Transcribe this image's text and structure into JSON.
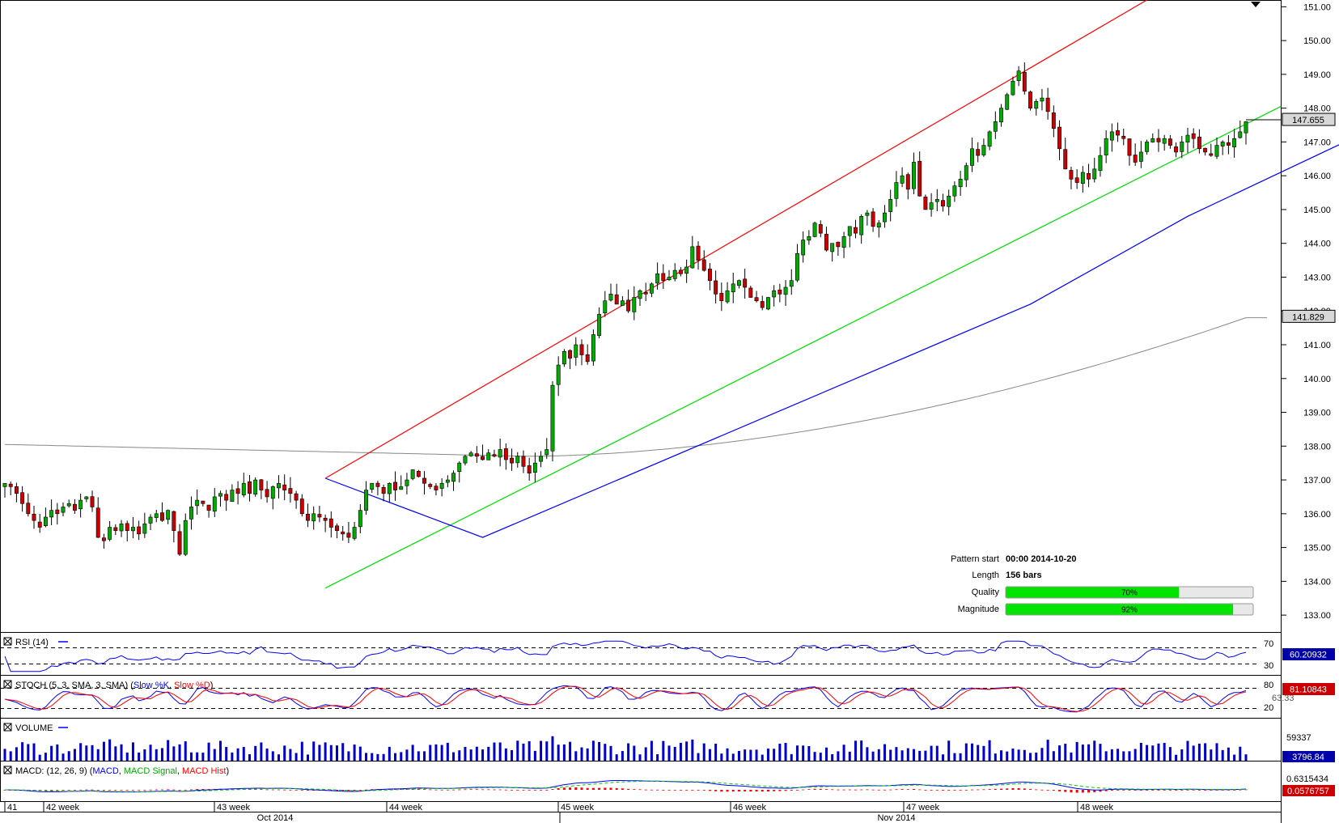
{
  "chart_data": {
    "type": "candlestick",
    "price_axis": {
      "ylim": [
        132.5,
        151.2
      ],
      "ticks": [
        "151.00",
        "150.00",
        "149.00",
        "148.00",
        "147.00",
        "146.00",
        "145.00",
        "144.00",
        "143.00",
        "142.00",
        "141.00",
        "140.00",
        "139.00",
        "138.00",
        "137.00",
        "136.00",
        "135.00",
        "134.00",
        "133.00"
      ],
      "last_price": "147.655",
      "ma_value": "141.829"
    },
    "week_labels": [
      "41",
      "42 week",
      "43 week",
      "44 week",
      "45 week",
      "46 week",
      "47 week",
      "48 week"
    ],
    "month_labels": [
      "Oct 2014",
      "Nov 2014"
    ],
    "pattern": {
      "start_label": "Pattern start",
      "start_value": "00:00 2014-10-20",
      "length_label": "Length",
      "length_value": "156 bars",
      "quality_label": "Quality",
      "quality_pct": 70,
      "quality_text": "70%",
      "magnitude_label": "Magnitude",
      "magnitude_pct": 92,
      "magnitude_text": "92%"
    },
    "indicators": {
      "rsi": {
        "title": "RSI (14)",
        "value": "60.20932",
        "levels": [
          "70",
          "30"
        ]
      },
      "stoch": {
        "title": "STOCH (5, 3, SMA, 3, SMA)",
        "k_label": "Slow %K",
        "d_label": "Slow %D",
        "value": "81.10843",
        "value2": "63.33",
        "levels": [
          "80",
          "20"
        ]
      },
      "volume": {
        "title": "VOLUME",
        "max_label": "59337",
        "value": "3796.84"
      },
      "macd": {
        "title": "MACD: (12, 26, 9)",
        "macd_label": "MACD",
        "signal_label": "MACD Signal",
        "hist_label": "MACD Hist",
        "value": "0.6315434",
        "hist_value": "0.0576757"
      }
    },
    "colors": {
      "up": "#00aa00",
      "down": "#cc0000",
      "resistance": "#ff0000",
      "support": "#00dd00",
      "zigzag": "#0000ff",
      "ma": "#888888",
      "quality_bar": "#00e400",
      "volume": "#0000cc"
    },
    "closes": [
      136.9,
      136.8,
      136.6,
      136.3,
      136.0,
      135.8,
      135.6,
      135.9,
      136.1,
      136.0,
      136.2,
      136.3,
      136.1,
      136.4,
      136.5,
      136.2,
      135.3,
      135.2,
      135.6,
      135.5,
      135.7,
      135.5,
      135.6,
      135.4,
      135.7,
      135.9,
      136.0,
      135.8,
      136.1,
      135.5,
      134.8,
      135.8,
      136.2,
      136.4,
      136.3,
      136.1,
      136.5,
      136.6,
      136.4,
      136.7,
      136.6,
      136.9,
      136.6,
      137.0,
      136.7,
      136.5,
      136.8,
      136.9,
      136.7,
      136.6,
      136.4,
      136.0,
      135.8,
      136.0,
      135.9,
      135.8,
      135.6,
      135.5,
      135.4,
      135.3,
      135.6,
      136.1,
      136.7,
      136.9,
      136.8,
      136.6,
      136.9,
      136.7,
      136.8,
      137.0,
      137.3,
      137.1,
      136.9,
      136.8,
      136.7,
      136.9,
      137.0,
      137.2,
      137.5,
      137.7,
      137.8,
      137.7,
      137.6,
      137.8,
      137.7,
      137.9,
      137.6,
      137.5,
      137.7,
      137.4,
      137.2,
      137.5,
      137.7,
      137.9,
      139.8,
      140.4,
      140.8,
      140.6,
      141.0,
      140.7,
      140.5,
      141.3,
      141.9,
      142.3,
      142.5,
      142.2,
      142.3,
      142.0,
      142.4,
      142.6,
      142.5,
      142.8,
      143.1,
      142.9,
      143.0,
      143.2,
      143.1,
      143.3,
      143.9,
      143.5,
      143.2,
      142.9,
      142.5,
      142.3,
      142.6,
      142.8,
      142.9,
      142.7,
      142.4,
      142.3,
      142.1,
      142.4,
      142.6,
      142.5,
      142.7,
      142.9,
      143.7,
      144.1,
      144.2,
      144.6,
      144.3,
      143.8,
      144.0,
      143.9,
      144.2,
      144.5,
      144.3,
      144.8,
      144.9,
      144.5,
      144.6,
      144.9,
      145.3,
      145.8,
      146.0,
      145.6,
      146.4,
      145.4,
      145.0,
      145.2,
      145.3,
      145.1,
      145.4,
      145.7,
      145.9,
      146.3,
      146.8,
      146.6,
      146.9,
      147.3,
      147.6,
      148.0,
      148.4,
      148.8,
      149.1,
      148.5,
      148.0,
      148.2,
      148.3,
      147.9,
      147.4,
      146.8,
      146.2,
      145.9,
      145.8,
      146.1,
      145.9,
      146.2,
      146.6,
      147.1,
      147.3,
      147.2,
      147.1,
      146.6,
      146.4,
      146.7,
      147.0,
      147.1,
      147.0,
      147.1,
      146.9,
      146.7,
      147.0,
      147.2,
      147.1,
      146.8,
      146.7,
      146.6,
      146.9,
      147.0,
      146.9,
      147.1,
      147.3,
      147.6
    ]
  }
}
